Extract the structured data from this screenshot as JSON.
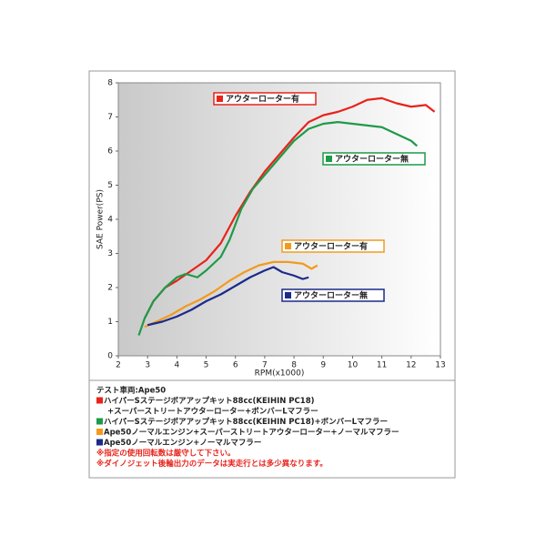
{
  "chart_data": {
    "type": "line",
    "y_label": "SAE Power(PS)",
    "x_label": "RPM(x1000)",
    "xlim": [
      2,
      13
    ],
    "xticks": [
      2,
      3,
      4,
      5,
      6,
      7,
      8,
      9,
      10,
      11,
      12,
      13
    ],
    "ylim": [
      0,
      8
    ],
    "yticks": [
      0,
      1,
      2,
      3,
      4,
      5,
      6,
      7,
      8
    ],
    "series": [
      {
        "name": "アウターローター有",
        "color": "#e8231c",
        "x": [
          2.9,
          3.2,
          3.6,
          4,
          4.5,
          5,
          5.5,
          6,
          6.5,
          7,
          7.5,
          8,
          8.5,
          9,
          9.5,
          10,
          10.5,
          11,
          11.5,
          12,
          12.5,
          12.8
        ],
        "values": [
          1.1,
          1.6,
          2.0,
          2.2,
          2.5,
          2.8,
          3.3,
          4.1,
          4.8,
          5.4,
          5.9,
          6.4,
          6.85,
          7.05,
          7.15,
          7.3,
          7.5,
          7.55,
          7.4,
          7.3,
          7.35,
          7.15
        ]
      },
      {
        "name": "アウターローター無",
        "color": "#1e9a48",
        "x": [
          2.7,
          2.9,
          3.2,
          3.6,
          4,
          4.3,
          4.7,
          5,
          5.5,
          5.8,
          6.2,
          6.6,
          7,
          7.5,
          8,
          8.5,
          9,
          9.5,
          10,
          10.5,
          11,
          11.5,
          12,
          12.2
        ],
        "values": [
          0.6,
          1.1,
          1.6,
          2.0,
          2.3,
          2.4,
          2.3,
          2.5,
          2.9,
          3.4,
          4.3,
          4.9,
          5.3,
          5.8,
          6.3,
          6.65,
          6.8,
          6.85,
          6.8,
          6.75,
          6.7,
          6.5,
          6.3,
          6.15
        ]
      },
      {
        "name": "アウターローター有",
        "color": "#f39a1e",
        "x": [
          2.9,
          3.3,
          3.8,
          4.3,
          4.8,
          5.3,
          5.8,
          6.3,
          6.8,
          7.3,
          7.8,
          8.3,
          8.6,
          8.8
        ],
        "values": [
          0.85,
          1.0,
          1.2,
          1.45,
          1.65,
          1.9,
          2.2,
          2.45,
          2.65,
          2.75,
          2.75,
          2.7,
          2.55,
          2.65
        ]
      },
      {
        "name": "アウターローター無",
        "color": "#1c2a8a",
        "x": [
          3,
          3.5,
          4,
          4.5,
          5,
          5.5,
          6,
          6.5,
          7,
          7.3,
          7.6,
          8,
          8.3,
          8.5
        ],
        "values": [
          0.9,
          1.0,
          1.15,
          1.35,
          1.6,
          1.8,
          2.05,
          2.3,
          2.5,
          2.6,
          2.45,
          2.35,
          2.25,
          2.3
        ]
      }
    ],
    "notes": [
      {
        "text": "テスト車両:Ape50"
      },
      {
        "text": "ハイパーSステージボアアップキット88cc(KEIHIN PC18)",
        "marker_color": "#e8231c"
      },
      {
        "text": "+スーパーストリートアウターローター+ボンバーLマフラー"
      },
      {
        "text": "ハイパーSステージボアアップキット88cc(KEIHIN PC18)+ボンバーLマフラー",
        "marker_color": "#1e9a48"
      },
      {
        "text": "Ape50ノーマルエンジン+スーパーストリートアウターローター+ノーマルマフラー",
        "marker_color": "#f39a1e"
      },
      {
        "text": "Ape50ノーマルエンジン+ノーマルマフラー",
        "marker_color": "#1c2a8a"
      },
      {
        "text": "※指定の使用回転数は厳守して下さい。",
        "text_color": "#e8231c"
      },
      {
        "text": "※ダイノジェット後輪出力のデータは実走行とは多少異なります。",
        "text_color": "#e8231c"
      }
    ]
  }
}
